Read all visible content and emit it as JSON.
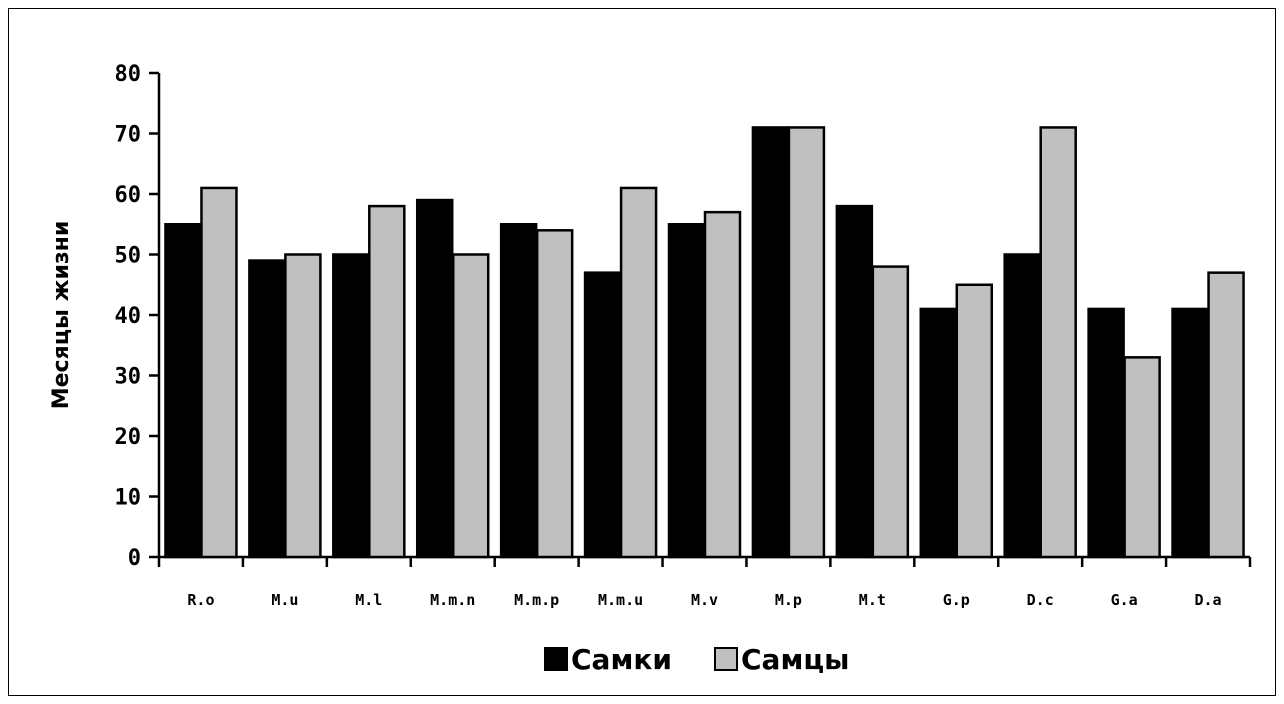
{
  "chart_data": {
    "type": "bar",
    "title": "",
    "xlabel": "",
    "ylabel": "Месяцы жизни",
    "ylim": [
      0,
      80
    ],
    "yticks": [
      0,
      10,
      20,
      30,
      40,
      50,
      60,
      70,
      80
    ],
    "categories": [
      "R.o",
      "M.u",
      "M.l",
      "M.m.n",
      "M.m.p",
      "M.m.u",
      "M.v",
      "M.p",
      "M.t",
      "G.p",
      "D.c",
      "G.a",
      "D.a"
    ],
    "series": [
      {
        "name": "Самки",
        "color": "#000000",
        "values": [
          55,
          49,
          50,
          59,
          55,
          47,
          55,
          71,
          58,
          41,
          50,
          41,
          41
        ]
      },
      {
        "name": "Самцы",
        "color": "#c0c0c0",
        "values": [
          61,
          50,
          58,
          50,
          54,
          61,
          57,
          71,
          48,
          45,
          71,
          33,
          47
        ]
      }
    ],
    "grid": false,
    "legend_position": "bottom"
  }
}
